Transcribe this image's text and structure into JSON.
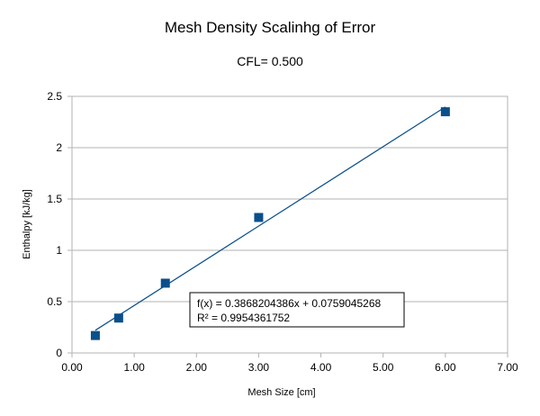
{
  "chart_data": {
    "type": "scatter",
    "title": "Mesh Density Scalinhg of Error",
    "subtitle": "CFL= 0.500",
    "xlabel": "Mesh Size [cm]",
    "ylabel": "Enthalpy [kJ/kg]",
    "xlim": [
      0,
      7
    ],
    "ylim": [
      0,
      2.5
    ],
    "x_ticks": [
      "0.00",
      "1.00",
      "2.00",
      "3.00",
      "4.00",
      "5.00",
      "6.00",
      "7.00"
    ],
    "y_ticks": [
      "0",
      "0.5",
      "1",
      "1.5",
      "2",
      "2.5"
    ],
    "grid": "horizontal",
    "legend": "none",
    "series": [
      {
        "x": [
          0.375,
          0.75,
          1.5,
          3.0,
          6.0
        ],
        "y": [
          0.17,
          0.34,
          0.68,
          1.32,
          2.35
        ],
        "color": "#0b4f8a",
        "marker": "square"
      }
    ],
    "trendline": {
      "slope": 0.3868204386,
      "intercept": 0.0759045268,
      "x_range": [
        0.375,
        6.0
      ],
      "color": "#0b4f8a",
      "equation": "f(x) = 0.3868204386x + 0.0759045268",
      "r_squared": "R² = 0.9954361752"
    }
  }
}
